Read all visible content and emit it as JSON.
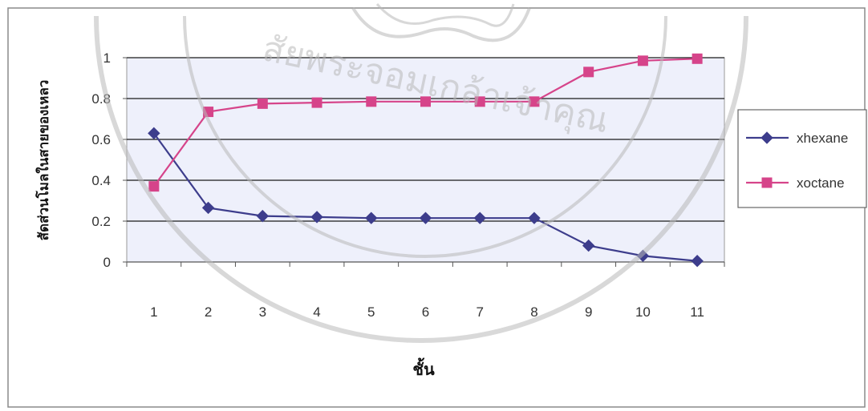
{
  "chart_data": {
    "type": "line",
    "categories": [
      "1",
      "2",
      "3",
      "4",
      "5",
      "6",
      "7",
      "8",
      "9",
      "10",
      "11"
    ],
    "series": [
      {
        "name": "xhexane",
        "color": "#3d3d8c",
        "marker": "diamond",
        "values": [
          0.63,
          0.265,
          0.225,
          0.22,
          0.215,
          0.215,
          0.215,
          0.215,
          0.08,
          0.03,
          0.005
        ]
      },
      {
        "name": "xoctane",
        "color": "#d6448a",
        "marker": "square",
        "values": [
          0.37,
          0.735,
          0.775,
          0.78,
          0.785,
          0.785,
          0.785,
          0.785,
          0.93,
          0.985,
          0.995
        ]
      }
    ],
    "xlabel": "ชั้น",
    "ylabel": "สัดส่วนโมลในสายของเหลว",
    "ylim": [
      0,
      1
    ],
    "yticks": [
      "0",
      "0.2",
      "0.4",
      "0.6",
      "0.8",
      "1"
    ],
    "grid": true,
    "legend": "right",
    "colors": {
      "plot_bg": "#eef0fb",
      "gridline": "#1a1a1a",
      "watermark": "#b9b9b9"
    }
  },
  "watermark": {
    "text": "สัยพระจอมเกล้าเจ้าคุณ"
  }
}
